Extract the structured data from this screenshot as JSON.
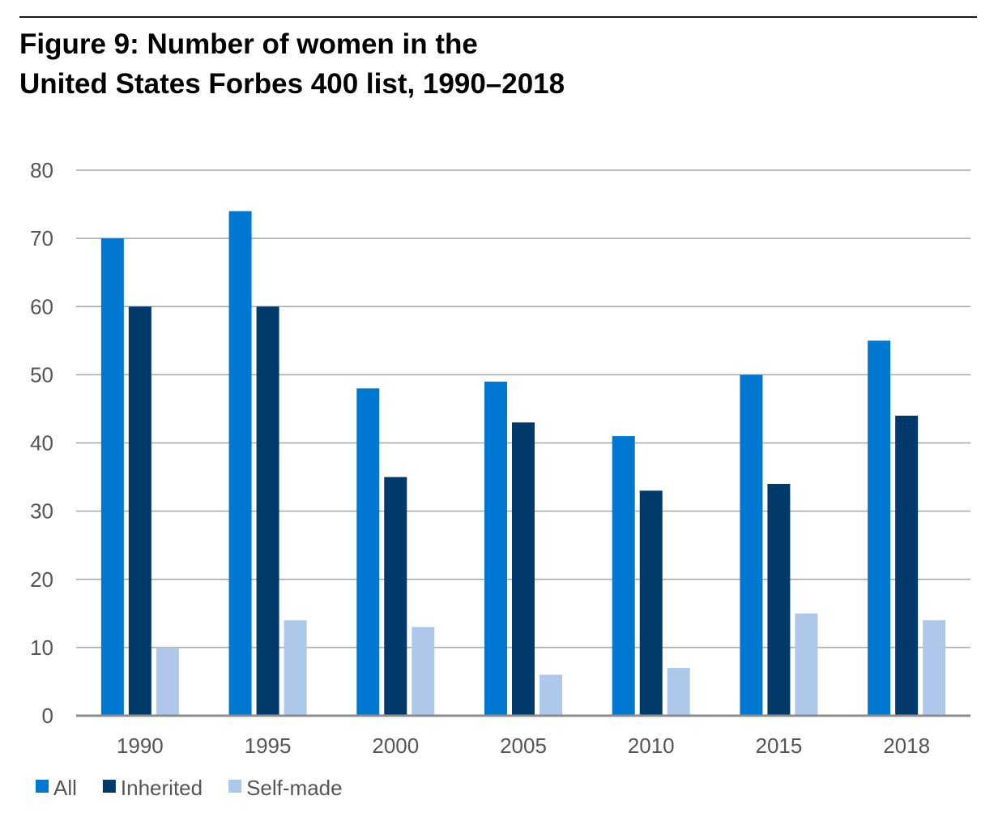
{
  "title": {
    "line1": "Figure 9: Number of women in the",
    "line2": "United States Forbes 400 list, 1990–2018"
  },
  "chart_data": {
    "type": "bar",
    "categories": [
      "1990",
      "1995",
      "2000",
      "2005",
      "2010",
      "2015",
      "2018"
    ],
    "series": [
      {
        "name": "All",
        "color": "#0078d2",
        "values": [
          70,
          74,
          48,
          49,
          41,
          50,
          55
        ]
      },
      {
        "name": "Inherited",
        "color": "#003a6b",
        "values": [
          60,
          60,
          35,
          43,
          33,
          34,
          44
        ]
      },
      {
        "name": "Self-made",
        "color": "#adc8ea",
        "values": [
          10,
          14,
          13,
          6,
          7,
          15,
          14
        ]
      }
    ],
    "ylim": [
      0,
      80
    ],
    "yticks": [
      0,
      10,
      20,
      30,
      40,
      50,
      60,
      70,
      80
    ],
    "grid": true,
    "legend_position": "bottom-left"
  }
}
